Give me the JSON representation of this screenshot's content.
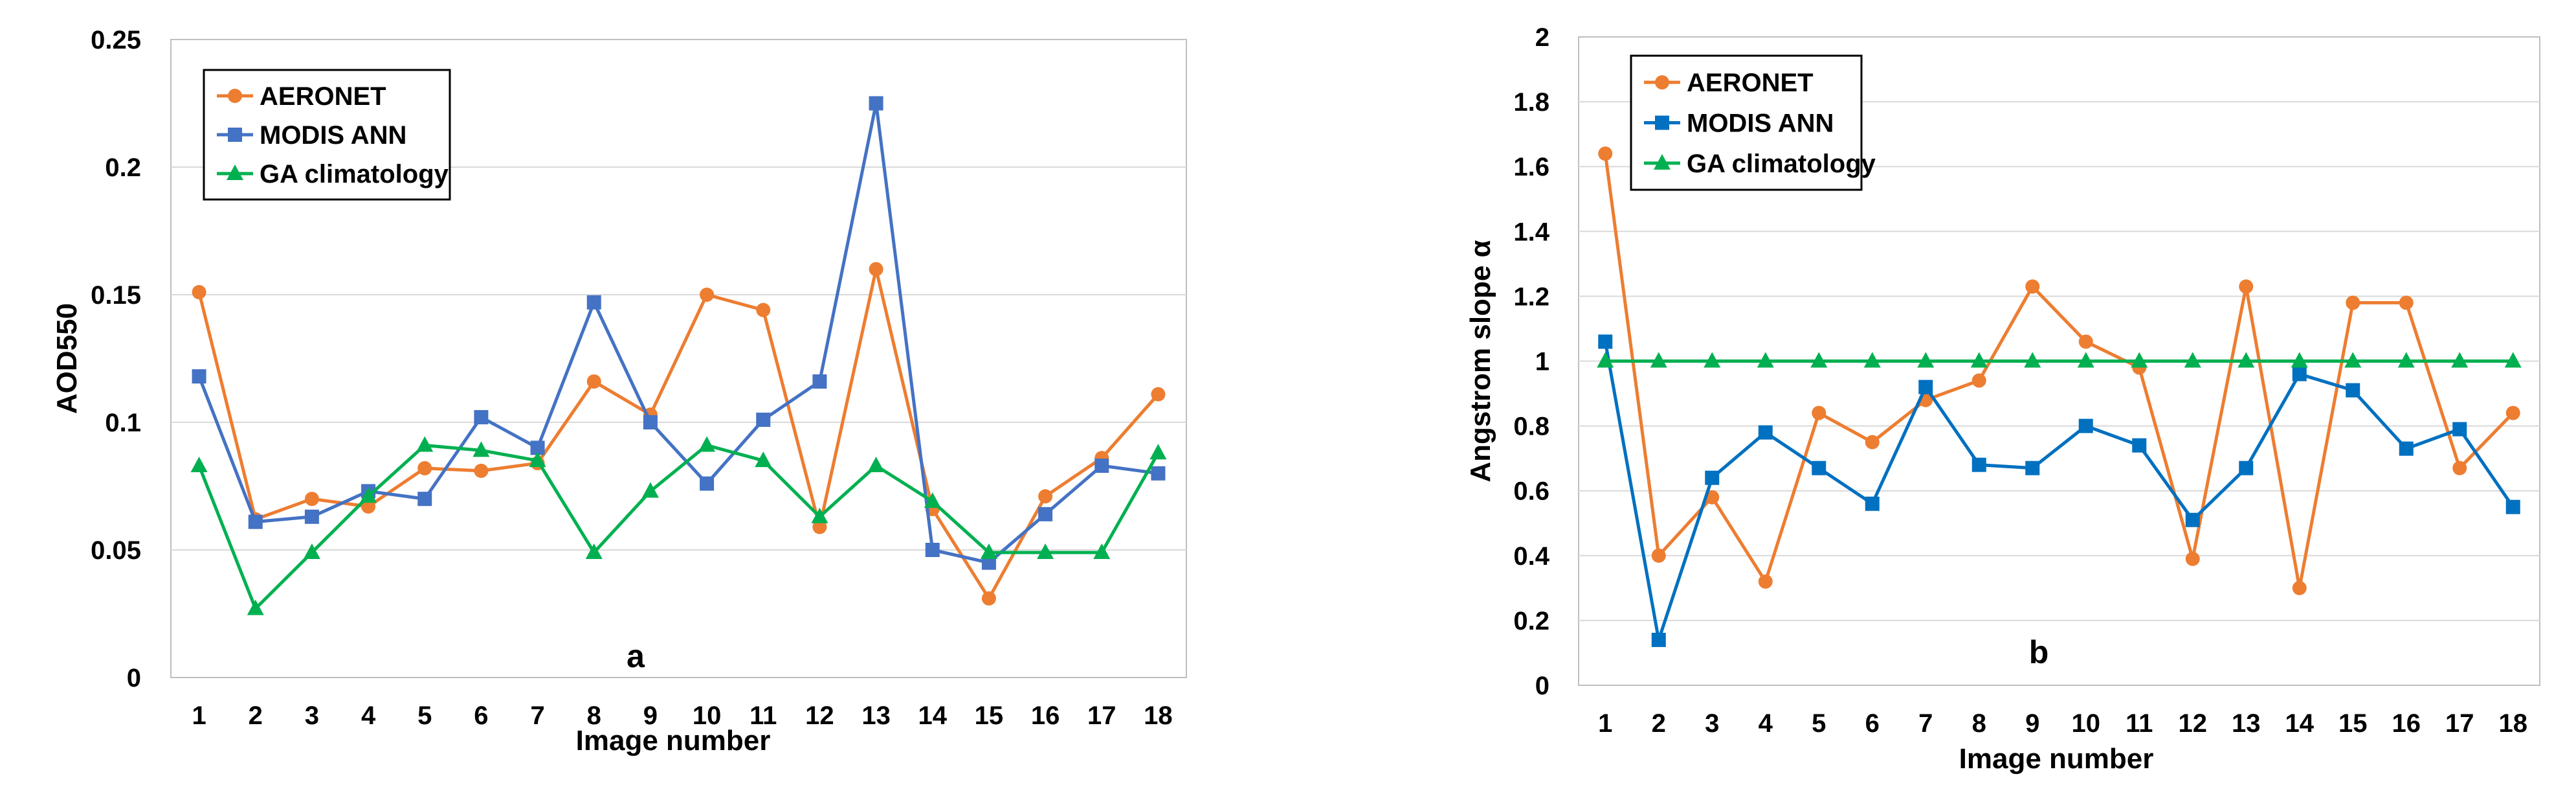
{
  "chart_data": [
    {
      "type": "line",
      "panel_label": "a",
      "title": "",
      "xlabel": "Image number",
      "ylabel": "AOD550",
      "categories": [
        "1",
        "2",
        "3",
        "4",
        "5",
        "6",
        "7",
        "8",
        "9",
        "10",
        "11",
        "12",
        "13",
        "14",
        "15",
        "16",
        "17",
        "18"
      ],
      "ylim": [
        0,
        0.25
      ],
      "yticks": [
        "0",
        "0.05",
        "0.1",
        "0.15",
        "0.2",
        "0.25"
      ],
      "ytick_values": [
        0,
        0.05,
        0.1,
        0.15,
        0.2,
        0.25
      ],
      "grid": true,
      "legend_position": "top-left",
      "series": [
        {
          "name": "AERONET",
          "color": "#ED7D31",
          "marker": "circle",
          "values": [
            0.151,
            0.062,
            0.07,
            0.067,
            0.082,
            0.081,
            0.084,
            0.116,
            0.103,
            0.15,
            0.144,
            0.059,
            0.16,
            0.066,
            0.031,
            0.071,
            0.086,
            0.111
          ]
        },
        {
          "name": "MODIS ANN",
          "color": "#4472C4",
          "marker": "square",
          "values": [
            0.118,
            0.061,
            0.063,
            0.073,
            0.07,
            0.102,
            0.09,
            0.147,
            0.1,
            0.076,
            0.101,
            0.116,
            0.225,
            0.05,
            0.045,
            0.064,
            0.083,
            0.08
          ]
        },
        {
          "name": "GA climatology",
          "color": "#00B050",
          "marker": "triangle",
          "values": [
            0.083,
            0.027,
            0.049,
            0.071,
            0.091,
            0.089,
            0.085,
            0.049,
            0.073,
            0.091,
            0.085,
            0.063,
            0.083,
            0.069,
            0.049,
            0.049,
            0.049,
            0.088
          ]
        }
      ]
    },
    {
      "type": "line",
      "panel_label": "b",
      "title": "",
      "xlabel": "Image number",
      "ylabel": "Angstrom slope α",
      "categories": [
        "1",
        "2",
        "3",
        "4",
        "5",
        "6",
        "7",
        "8",
        "9",
        "10",
        "11",
        "12",
        "13",
        "14",
        "15",
        "16",
        "17",
        "18"
      ],
      "ylim": [
        0,
        2
      ],
      "yticks": [
        "0",
        "0.2",
        "0.4",
        "0.6",
        "0.8",
        "1",
        "1.2",
        "1.4",
        "1.6",
        "1.8",
        "2"
      ],
      "ytick_values": [
        0,
        0.2,
        0.4,
        0.6,
        0.8,
        1,
        1.2,
        1.4,
        1.6,
        1.8,
        2
      ],
      "grid": true,
      "legend_position": "top-left",
      "series": [
        {
          "name": "AERONET",
          "color": "#ED7D31",
          "marker": "circle",
          "values": [
            1.64,
            0.4,
            0.58,
            0.32,
            0.84,
            0.75,
            0.88,
            0.94,
            1.23,
            1.06,
            0.98,
            0.39,
            1.23,
            0.3,
            1.18,
            1.18,
            0.67,
            0.84
          ]
        },
        {
          "name": "MODIS ANN",
          "color": "#0070C0",
          "marker": "square",
          "values": [
            1.06,
            0.14,
            0.64,
            0.78,
            0.67,
            0.56,
            0.92,
            0.68,
            0.67,
            0.8,
            0.74,
            0.51,
            0.67,
            0.96,
            0.91,
            0.73,
            0.79,
            0.55
          ]
        },
        {
          "name": "GA climatology",
          "color": "#00B050",
          "marker": "triangle",
          "values": [
            1,
            1,
            1,
            1,
            1,
            1,
            1,
            1,
            1,
            1,
            1,
            1,
            1,
            1,
            1,
            1,
            1,
            1
          ]
        }
      ]
    }
  ]
}
